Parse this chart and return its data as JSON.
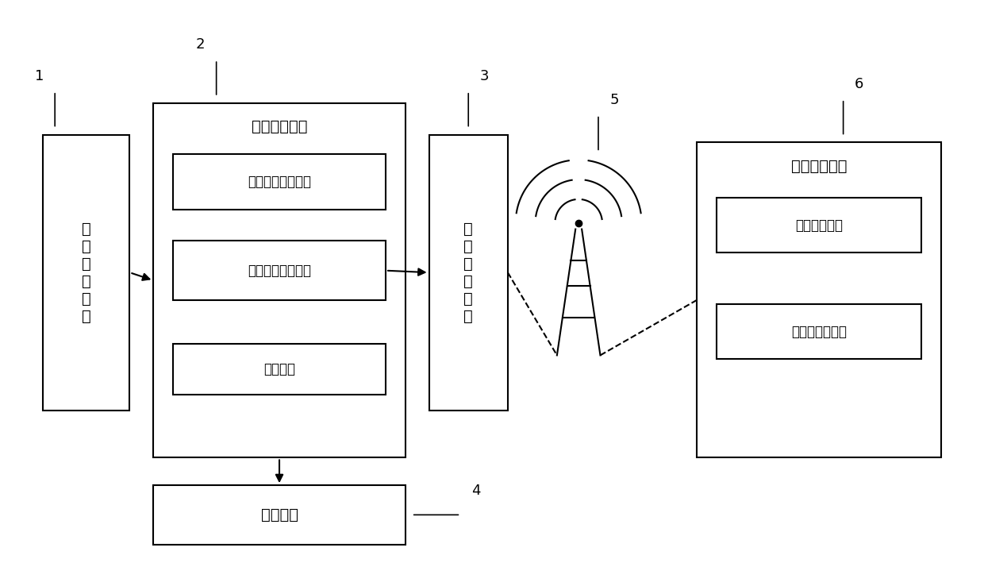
{
  "background_color": "#ffffff",
  "fig_width": 12.4,
  "fig_height": 7.38,
  "dpi": 100,
  "labels": {
    "module1": "影\n像\n采\n集\n模\n块",
    "module2_title": "数据处理模块",
    "module2_sub1": "构建三维遥感模块",
    "module2_sub2": "滑坡周界划分模块",
    "module2_sub3": "判断模块",
    "module3": "无\n线\n通\n信\n模\n块",
    "module4": "显示模块",
    "module5_title": "云服务器模块",
    "module5_sub1": "数据存储模块",
    "module5_sub2": "大数据计算模块"
  },
  "ref_numbers": {
    "n1": "1",
    "n2": "2",
    "n3": "3",
    "n4": "4",
    "n5": "5",
    "n6": "6"
  },
  "font_size_main": 14,
  "font_size_sub": 12,
  "font_size_ref": 13,
  "line_color": "#000000",
  "box_edge_color": "#000000",
  "box_face_color": "#ffffff"
}
